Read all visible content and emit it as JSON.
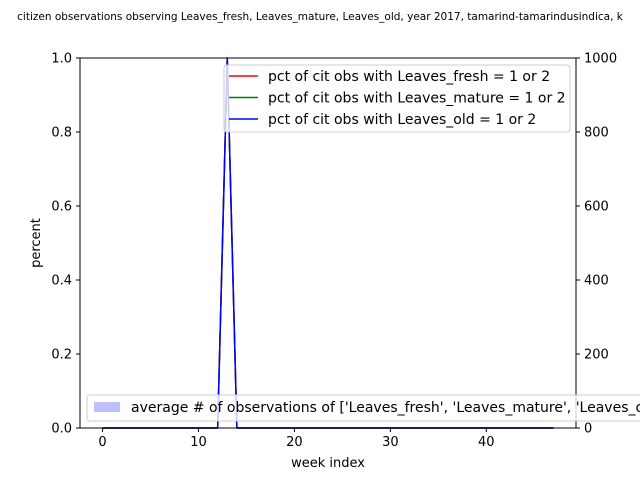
{
  "chart_data": {
    "type": "line",
    "title": "citizen observations observing Leaves_fresh, Leaves_mature, Leaves_old, year 2017, tamarind-tamarindusindica, k",
    "xlabel": "week index",
    "ylabel": "percent",
    "xlim": [
      -2.35,
      49.35
    ],
    "ylim": [
      0,
      1.0
    ],
    "y2lim": [
      0,
      1000
    ],
    "x_ticks": [
      0,
      10,
      20,
      30,
      40
    ],
    "y_ticks": [
      0.0,
      0.2,
      0.4,
      0.6,
      0.8,
      1.0
    ],
    "y2_ticks": [
      0,
      200,
      400,
      600,
      800,
      1000
    ],
    "grid": false,
    "x": [
      0,
      1,
      2,
      3,
      4,
      5,
      6,
      7,
      8,
      9,
      10,
      11,
      12,
      13,
      14,
      15,
      16,
      17,
      18,
      19,
      20,
      21,
      22,
      23,
      24,
      25,
      26,
      27,
      28,
      29,
      30,
      31,
      32,
      33,
      34,
      35,
      36,
      37,
      38,
      39,
      40,
      41,
      42,
      43,
      44,
      45,
      46,
      47
    ],
    "series": [
      {
        "name": "pct of cit obs with Leaves_fresh = 1 or 2",
        "color": "#ff0000",
        "axis": "left",
        "values": [
          0,
          0,
          0,
          0,
          0,
          0,
          0,
          0,
          0,
          0,
          0,
          0,
          0,
          1,
          0,
          0,
          0,
          0,
          0,
          0,
          0,
          0,
          0,
          0,
          0,
          0,
          0,
          0,
          0,
          0,
          0,
          0,
          0,
          0,
          0,
          0,
          0,
          0,
          0,
          0,
          0,
          0,
          0,
          0,
          0,
          0,
          0,
          0
        ]
      },
      {
        "name": "pct of cit obs with Leaves_mature = 1 or 2",
        "color": "#008000",
        "axis": "left",
        "values": [
          0,
          0,
          0,
          0,
          0,
          0,
          0,
          0,
          0,
          0,
          0,
          0,
          0,
          1,
          0,
          0,
          0,
          0,
          0,
          0,
          0,
          0,
          0,
          0,
          0,
          0,
          0,
          0,
          0,
          0,
          0,
          0,
          0,
          0,
          0,
          0,
          0,
          0,
          0,
          0,
          0,
          0,
          0,
          0,
          0,
          0,
          0,
          0
        ]
      },
      {
        "name": "pct of cit obs with Leaves_old = 1 or 2",
        "color": "#0000ff",
        "axis": "left",
        "values": [
          0,
          0,
          0,
          0,
          0,
          0,
          0,
          0,
          0,
          0,
          0,
          0,
          0,
          1,
          0,
          0,
          0,
          0,
          0,
          0,
          0,
          0,
          0,
          0,
          0,
          0,
          0,
          0,
          0,
          0,
          0,
          0,
          0,
          0,
          0,
          0,
          0,
          0,
          0,
          0,
          0,
          0,
          0,
          0,
          0,
          0,
          0,
          0
        ]
      }
    ],
    "bar_series": {
      "name": "average # of observations of ['Leaves_fresh', 'Leaves_mature', 'Leaves_old']",
      "color": "#8080ff",
      "axis": "right",
      "values": [
        0,
        0,
        0,
        0,
        0,
        0,
        0,
        0,
        0,
        0,
        0,
        0,
        0,
        1,
        0,
        0,
        0,
        0,
        0,
        0,
        0,
        0,
        0,
        0,
        0,
        0,
        0,
        0,
        0,
        0,
        0,
        0,
        0,
        0,
        0,
        0,
        0,
        0,
        0,
        0,
        0,
        0,
        0,
        0,
        0,
        0,
        0,
        0
      ]
    },
    "legend_top_placement": "top-right",
    "legend_bottom_placement": "lower-left"
  }
}
